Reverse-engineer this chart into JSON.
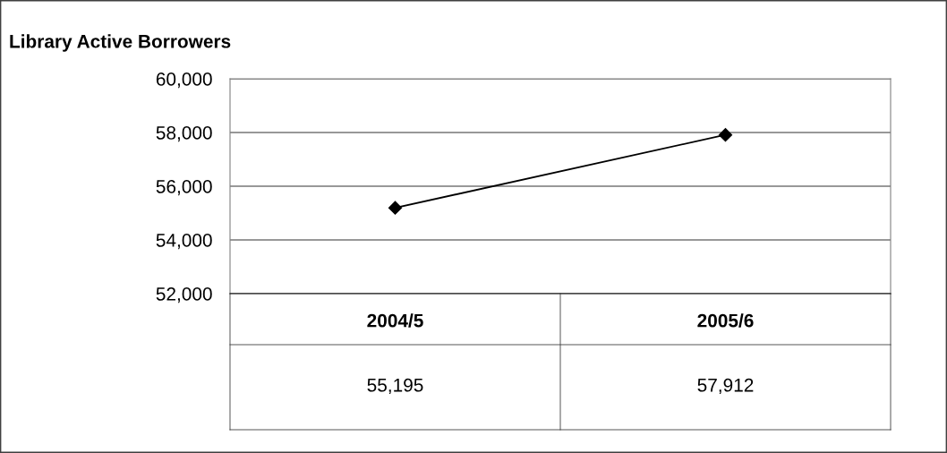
{
  "chart_data": {
    "type": "line",
    "title": "Library Active Borrowers",
    "categories": [
      "2004/5",
      "2005/6"
    ],
    "series": [
      {
        "color": "#000000",
        "values": [
          55195,
          57912
        ],
        "value_labels": [
          "55,195",
          "57,912"
        ]
      }
    ],
    "ylim": [
      52000,
      60000
    ],
    "yticks": [
      {
        "value": 52000,
        "label": "52,000"
      },
      {
        "value": 54000,
        "label": "54,000"
      },
      {
        "value": 56000,
        "label": "56,000"
      },
      {
        "value": 58000,
        "label": "58,000"
      },
      {
        "value": 60000,
        "label": "60,000"
      }
    ],
    "grid": "y",
    "marker": "diamond",
    "line_style": "solid"
  }
}
